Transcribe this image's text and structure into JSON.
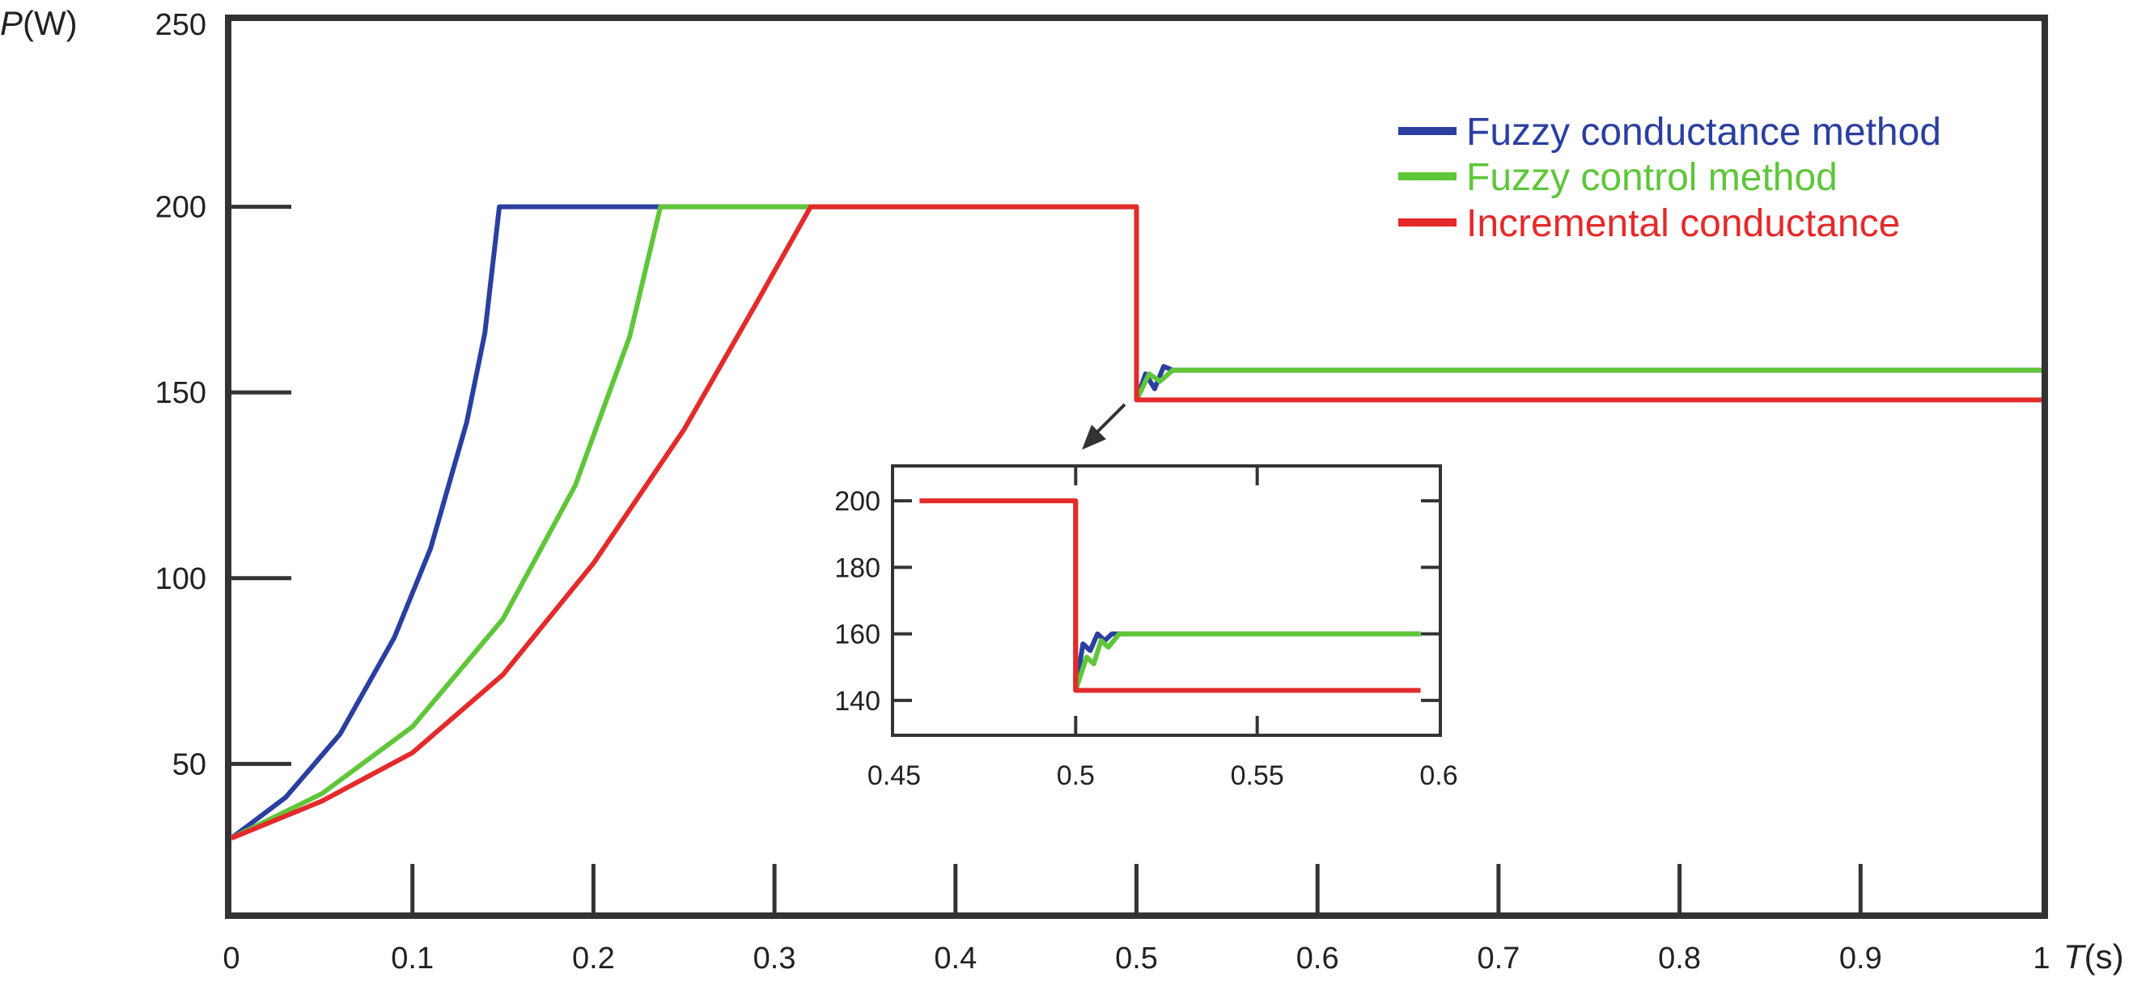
{
  "chart_data": {
    "type": "line",
    "title": "",
    "xlabel": {
      "var": "T",
      "unit": "(s)"
    },
    "ylabel": {
      "var": "P",
      "unit": "(W)"
    },
    "xlim": [
      0,
      1
    ],
    "ylim": [
      10,
      250
    ],
    "x_ticks": [
      0,
      0.1,
      0.2,
      0.3,
      0.4,
      0.5,
      0.6,
      0.7,
      0.8,
      0.9,
      1
    ],
    "x_tick_labels": [
      "0",
      "0.1",
      "0.2",
      "0.3",
      "0.4",
      "0.5",
      "0.6",
      "0.7",
      "0.8",
      "0.9",
      "1"
    ],
    "y_ticks": [
      50,
      100,
      150,
      200
    ],
    "y_tick_labels": [
      "50",
      "100",
      "150",
      "200"
    ],
    "y_top_label": "250",
    "grid": false,
    "legend_position": "top-right",
    "series": [
      {
        "name": "Fuzzy conductance method",
        "color": "#2b3fa0",
        "points": [
          [
            0,
            30
          ],
          [
            0.03,
            41
          ],
          [
            0.06,
            58
          ],
          [
            0.09,
            84
          ],
          [
            0.11,
            108
          ],
          [
            0.13,
            142
          ],
          [
            0.14,
            166
          ],
          [
            0.148,
            200
          ],
          [
            0.25,
            200
          ],
          [
            0.5,
            200
          ],
          [
            0.5,
            148
          ],
          [
            0.505,
            155
          ],
          [
            0.51,
            151
          ],
          [
            0.515,
            157
          ],
          [
            0.52,
            156
          ],
          [
            1,
            156
          ]
        ]
      },
      {
        "name": "Fuzzy control method",
        "color": "#5fc63a",
        "points": [
          [
            0,
            30
          ],
          [
            0.05,
            42
          ],
          [
            0.1,
            60
          ],
          [
            0.15,
            89
          ],
          [
            0.19,
            125
          ],
          [
            0.22,
            165
          ],
          [
            0.237,
            200
          ],
          [
            0.3,
            200
          ],
          [
            0.5,
            200
          ],
          [
            0.5,
            148
          ],
          [
            0.507,
            155
          ],
          [
            0.513,
            153
          ],
          [
            0.52,
            156
          ],
          [
            1,
            156
          ]
        ]
      },
      {
        "name": "Incremental conductance",
        "color": "#e42a2a",
        "points": [
          [
            0,
            30
          ],
          [
            0.05,
            40
          ],
          [
            0.1,
            53
          ],
          [
            0.15,
            74
          ],
          [
            0.2,
            104
          ],
          [
            0.25,
            140
          ],
          [
            0.29,
            174
          ],
          [
            0.32,
            200
          ],
          [
            0.4,
            200
          ],
          [
            0.5,
            200
          ],
          [
            0.5,
            148
          ],
          [
            1,
            148
          ]
        ]
      }
    ],
    "inset": {
      "xlim": [
        0.45,
        0.6
      ],
      "ylim": [
        130,
        210
      ],
      "x_ticks": [
        0.45,
        0.5,
        0.55,
        0.6
      ],
      "x_tick_labels": [
        "0.45",
        "0.5",
        "0.55",
        "0.6"
      ],
      "y_ticks": [
        140,
        160,
        180,
        200
      ],
      "y_tick_labels": [
        "140",
        "160",
        "180",
        "200"
      ],
      "series": [
        {
          "name": "Fuzzy conductance method",
          "color": "#2b3fa0",
          "points": [
            [
              0.5,
              200
            ],
            [
              0.5,
              143
            ],
            [
              0.502,
              157
            ],
            [
              0.504,
              155
            ],
            [
              0.506,
              160
            ],
            [
              0.508,
              158
            ],
            [
              0.51,
              160
            ],
            [
              0.595,
              160
            ]
          ]
        },
        {
          "name": "Fuzzy control method",
          "color": "#5fc63a",
          "points": [
            [
              0.5,
              200
            ],
            [
              0.5,
              143
            ],
            [
              0.503,
              153
            ],
            [
              0.505,
              151
            ],
            [
              0.507,
              158
            ],
            [
              0.509,
              156
            ],
            [
              0.512,
              160
            ],
            [
              0.595,
              160
            ]
          ]
        },
        {
          "name": "Incremental conductance",
          "color": "#e42a2a",
          "points": [
            [
              0.457,
              200
            ],
            [
              0.5,
              200
            ],
            [
              0.5,
              143
            ],
            [
              0.595,
              143
            ]
          ]
        }
      ]
    }
  }
}
